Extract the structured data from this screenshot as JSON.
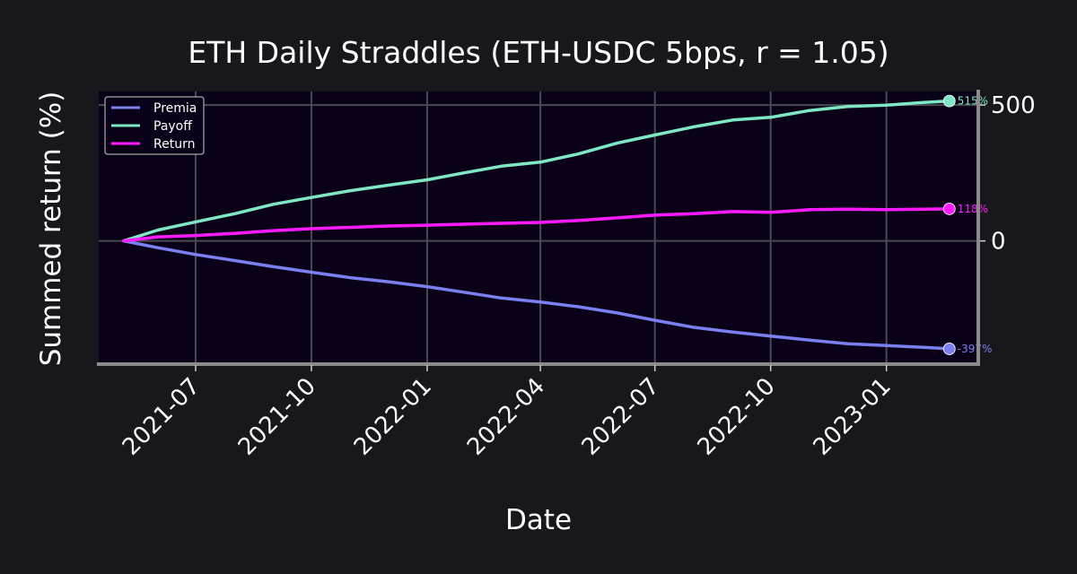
{
  "chart_data": {
    "type": "line",
    "title": "ETH Daily Straddles (ETH-USDC 5bps, r = 1.05)",
    "xlabel": "Date",
    "ylabel": "Summed return (%)",
    "x_ticks": [
      "2021-07",
      "2021-10",
      "2022-01",
      "2022-04",
      "2022-07",
      "2022-10",
      "2023-01"
    ],
    "y_ticks": [
      0,
      500
    ],
    "ylim": [
      -450,
      550
    ],
    "xlim": [
      "2021-04-15",
      "2023-03-15"
    ],
    "y_axis_side": "right",
    "grid": true,
    "legend_position": "top-left",
    "background_color": "#0a0118",
    "page_color": "#18171c",
    "x": [
      "2021-05-05",
      "2021-06-01",
      "2021-07-01",
      "2021-08-01",
      "2021-09-01",
      "2021-10-01",
      "2021-11-01",
      "2021-12-01",
      "2022-01-01",
      "2022-02-01",
      "2022-03-01",
      "2022-04-01",
      "2022-05-01",
      "2022-06-01",
      "2022-07-01",
      "2022-08-01",
      "2022-09-01",
      "2022-10-01",
      "2022-11-01",
      "2022-12-01",
      "2023-01-01",
      "2023-02-01",
      "2023-02-20"
    ],
    "series": [
      {
        "name": "Premia",
        "color": "#7b7ff0",
        "values": [
          0,
          -25,
          -50,
          -72,
          -95,
          -115,
          -135,
          -150,
          -168,
          -190,
          -210,
          -225,
          -242,
          -265,
          -292,
          -318,
          -335,
          -350,
          -365,
          -378,
          -385,
          -392,
          -397
        ],
        "end_label": "-397%"
      },
      {
        "name": "Payoff",
        "color": "#7de8c3",
        "values": [
          0,
          40,
          70,
          100,
          135,
          160,
          185,
          205,
          225,
          252,
          275,
          290,
          320,
          360,
          390,
          420,
          445,
          455,
          480,
          495,
          500,
          510,
          515
        ],
        "end_label": "515%"
      },
      {
        "name": "Return",
        "color": "#ff1aff",
        "values": [
          0,
          15,
          20,
          28,
          38,
          45,
          50,
          55,
          58,
          62,
          65,
          68,
          75,
          85,
          95,
          100,
          108,
          105,
          115,
          117,
          115,
          117,
          118
        ],
        "end_label": "118%"
      }
    ]
  }
}
